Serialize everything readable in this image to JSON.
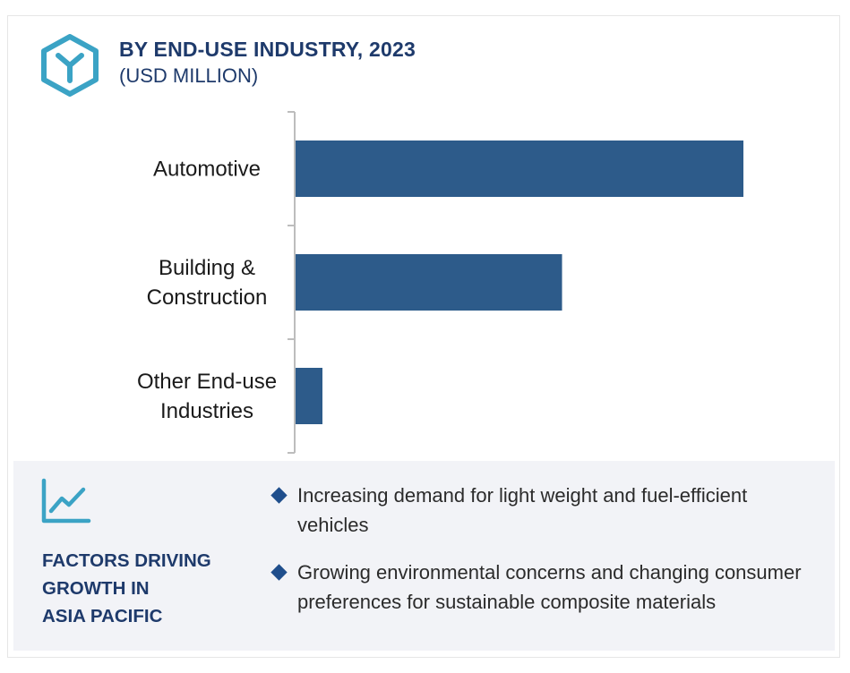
{
  "header": {
    "title": "BY END-USE INDUSTRY, 2023",
    "subtitle": "(USD MILLION)",
    "logo_icon": "hexagon-y-logo-icon"
  },
  "colors": {
    "bar": "#2d5b8a",
    "title": "#1e3a6b",
    "accent_teal": "#3ba3c5",
    "panel_bg": "#f2f3f7",
    "bullet": "#1f4e8c"
  },
  "chart_data": {
    "type": "bar",
    "orientation": "horizontal",
    "title": "BY END-USE INDUSTRY, 2023",
    "subtitle": "(USD MILLION)",
    "categories": [
      [
        "Automotive"
      ],
      [
        "Building &",
        "Construction"
      ],
      [
        "Other End-use",
        "Industries"
      ]
    ],
    "values": [
      100,
      59.5,
      6
    ],
    "xlim": [
      0,
      100
    ],
    "value_labels_shown": false,
    "grid": false
  },
  "factors": {
    "heading_lines": [
      "FACTORS DRIVING",
      "GROWTH IN",
      "ASIA PACIFIC"
    ],
    "icon": "trend-chart-icon",
    "items": [
      {
        "text": "Increasing demand for light weight and fuel-efficient vehicles"
      },
      {
        "text": "Growing environmental concerns and changing consumer preferences for sustainable composite materials"
      }
    ]
  }
}
